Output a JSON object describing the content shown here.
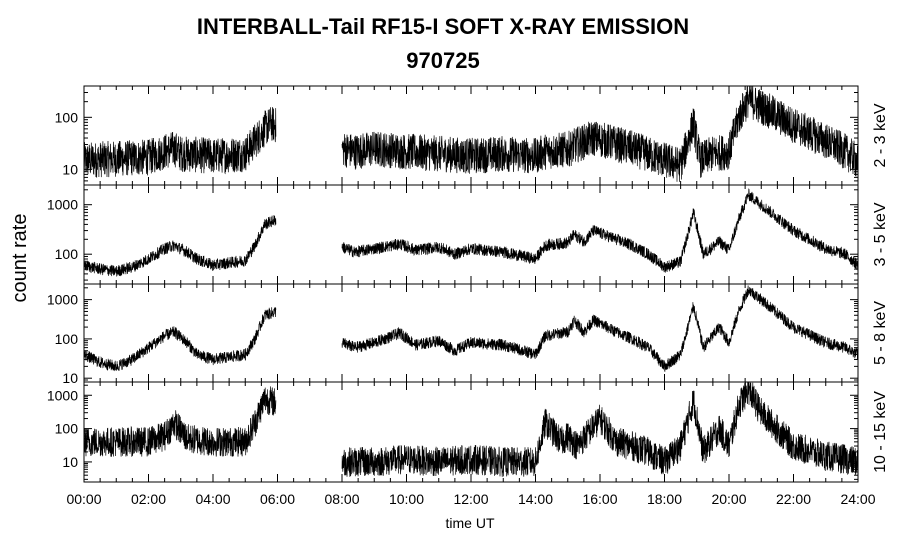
{
  "chart_data": {
    "type": "line",
    "title": "INTERBALL-Tail RF15-I SOFT X-RAY EMISSION",
    "subtitle": "970725",
    "xlabel": "time UT",
    "ylabel": "count rate",
    "x_range_hours": [
      0,
      24
    ],
    "x_ticks": [
      "00:00",
      "02:00",
      "04:00",
      "06:00",
      "08:00",
      "10:00",
      "12:00",
      "14:00",
      "16:00",
      "18:00",
      "20:00",
      "22:00",
      "24:00"
    ],
    "y_scale": "log",
    "data_gap_hours": [
      5.95,
      8.0
    ],
    "panels": [
      {
        "channel": "2 - 3 keV",
        "ylim": [
          5,
          400
        ],
        "y_ticks": [
          10,
          100
        ],
        "y_tick_labels": [
          "10",
          "100"
        ],
        "noise": 0.35,
        "x": [
          0,
          1,
          2,
          2.5,
          2.8,
          3,
          4,
          5,
          5.3,
          5.6,
          5.8,
          5.95,
          8.0,
          8.4,
          9,
          10,
          11,
          12,
          13,
          14,
          14.3,
          15,
          15.3,
          15.8,
          16.2,
          17,
          18,
          18.5,
          18.9,
          19.1,
          19.5,
          20,
          20.3,
          20.6,
          21,
          22,
          23,
          23.6,
          24
        ],
        "y": [
          15,
          16,
          17,
          22,
          25,
          20,
          18,
          20,
          35,
          60,
          75,
          70,
          25,
          22,
          25,
          22,
          20,
          18,
          20,
          18,
          22,
          24,
          30,
          40,
          35,
          25,
          15,
          12,
          80,
          15,
          20,
          22,
          100,
          220,
          160,
          70,
          35,
          22,
          14
        ]
      },
      {
        "channel": "3 - 5 keV",
        "ylim": [
          25,
          2500
        ],
        "y_ticks": [
          100,
          1000
        ],
        "y_tick_labels": [
          "100",
          "1000"
        ],
        "noise": 0.12,
        "x": [
          0,
          0.5,
          1,
          1.5,
          2,
          2.5,
          2.8,
          3.2,
          3.5,
          4,
          5,
          5.3,
          5.6,
          5.95,
          8.0,
          8.4,
          9,
          9.8,
          10.3,
          11,
          11.5,
          12,
          13,
          14,
          14.3,
          15,
          15.2,
          15.5,
          15.8,
          16.5,
          17,
          17.5,
          18,
          18.5,
          18.9,
          19.2,
          19.7,
          20,
          20.3,
          20.6,
          21,
          22,
          23,
          23.6,
          24
        ],
        "y": [
          60,
          50,
          45,
          55,
          80,
          130,
          150,
          110,
          80,
          60,
          75,
          150,
          400,
          500,
          140,
          110,
          130,
          160,
          120,
          140,
          100,
          130,
          110,
          80,
          150,
          170,
          250,
          180,
          300,
          200,
          150,
          100,
          55,
          70,
          700,
          100,
          180,
          120,
          500,
          1600,
          1000,
          300,
          130,
          100,
          60
        ]
      },
      {
        "channel": "5 - 8 keV",
        "ylim": [
          8,
          2500
        ],
        "y_ticks": [
          10,
          100,
          1000
        ],
        "y_tick_labels": [
          "10",
          "100",
          "1000"
        ],
        "noise": 0.15,
        "x": [
          0,
          0.5,
          1,
          1.5,
          2,
          2.5,
          2.8,
          3.2,
          3.5,
          4,
          5,
          5.3,
          5.6,
          5.95,
          8.0,
          8.4,
          9,
          9.8,
          10.3,
          11,
          11.5,
          12,
          13,
          14,
          14.3,
          15,
          15.2,
          15.5,
          15.8,
          16.5,
          17,
          17.5,
          18,
          18.5,
          18.9,
          19.2,
          19.7,
          20,
          20.3,
          20.6,
          21,
          22,
          23,
          23.6,
          24
        ],
        "y": [
          40,
          25,
          20,
          30,
          60,
          120,
          150,
          80,
          40,
          30,
          40,
          100,
          400,
          500,
          80,
          60,
          80,
          140,
          70,
          90,
          50,
          80,
          70,
          40,
          120,
          150,
          300,
          150,
          300,
          150,
          100,
          60,
          20,
          40,
          700,
          60,
          200,
          80,
          500,
          1800,
          1000,
          200,
          80,
          60,
          40
        ]
      },
      {
        "channel": "10 - 15 keV",
        "ylim": [
          2.5,
          2500
        ],
        "y_ticks": [
          10,
          100,
          1000
        ],
        "y_tick_labels": [
          "10",
          "100",
          "1000"
        ],
        "noise": 0.45,
        "x": [
          0,
          1,
          2,
          2.5,
          2.8,
          3.2,
          4,
          5,
          5.3,
          5.6,
          5.95,
          8.0,
          9,
          10,
          11,
          12,
          13,
          14,
          14.3,
          14.8,
          15,
          15.3,
          16,
          16.5,
          17,
          17.5,
          18,
          18.5,
          18.9,
          19.2,
          19.7,
          20,
          20.3,
          20.6,
          21,
          22,
          23,
          23.6,
          24
        ],
        "y": [
          40,
          40,
          40,
          60,
          150,
          50,
          40,
          40,
          150,
          800,
          600,
          10,
          10,
          12,
          10,
          12,
          10,
          10,
          150,
          40,
          60,
          30,
          200,
          40,
          30,
          20,
          10,
          30,
          700,
          20,
          100,
          30,
          500,
          1500,
          300,
          30,
          15,
          12,
          10
        ]
      }
    ]
  }
}
